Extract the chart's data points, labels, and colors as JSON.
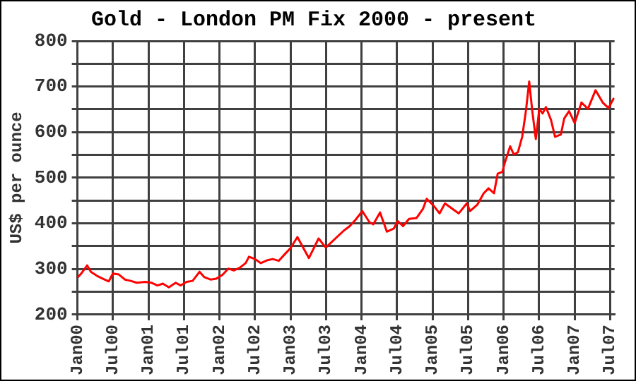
{
  "chart_data": {
    "type": "line",
    "title": "Gold - London PM Fix 2000 - present",
    "ylabel": "US$ per ounce",
    "x": [
      "2000-01-03",
      "2000-01-20",
      "2000-02-20",
      "2000-03-10",
      "2000-04-15",
      "2000-05-15",
      "2000-06-10",
      "2000-07-01",
      "2000-08-01",
      "2000-09-01",
      "2000-10-01",
      "2000-11-01",
      "2000-12-15",
      "2001-01-15",
      "2001-02-15",
      "2001-03-15",
      "2001-04-15",
      "2001-05-20",
      "2001-06-15",
      "2001-07-15",
      "2001-08-15",
      "2001-09-20",
      "2001-10-15",
      "2001-11-15",
      "2001-12-15",
      "2002-01-15",
      "2002-02-15",
      "2002-03-15",
      "2002-04-15",
      "2002-05-15",
      "2002-06-01",
      "2002-07-01",
      "2002-08-01",
      "2002-09-01",
      "2002-10-01",
      "2002-11-01",
      "2002-12-01",
      "2003-01-01",
      "2003-02-05",
      "2003-04-05",
      "2003-05-25",
      "2003-07-01",
      "2003-10-01",
      "2003-11-01",
      "2003-12-01",
      "2004-01-05",
      "2004-02-10",
      "2004-03-01",
      "2004-04-05",
      "2004-05-10",
      "2004-06-15",
      "2004-07-05",
      "2004-08-01",
      "2004-09-01",
      "2004-10-10",
      "2004-11-12",
      "2004-12-01",
      "2005-01-05",
      "2005-02-05",
      "2005-03-05",
      "2005-04-12",
      "2005-05-15",
      "2005-06-25",
      "2005-07-12",
      "2005-08-18",
      "2005-09-20",
      "2005-10-15",
      "2005-11-12",
      "2005-12-01",
      "2005-12-25",
      "2006-01-06",
      "2006-02-03",
      "2006-02-22",
      "2006-03-15",
      "2006-04-06",
      "2006-04-25",
      "2006-05-12",
      "2006-05-28",
      "2006-06-15",
      "2006-07-03",
      "2006-07-20",
      "2006-08-06",
      "2006-09-01",
      "2006-09-22",
      "2006-10-22",
      "2006-11-08",
      "2006-12-03",
      "2007-01-01",
      "2007-02-05",
      "2007-03-10",
      "2007-04-18",
      "2007-05-25",
      "2007-06-24",
      "2007-07-22"
    ],
    "series": [
      {
        "color": "#ff0000",
        "values": [
          282,
          290,
          308,
          294,
          284,
          278,
          273,
          290,
          288,
          277,
          274,
          270,
          272,
          270,
          264,
          268,
          260,
          270,
          264,
          272,
          274,
          294,
          282,
          277,
          279,
          287,
          301,
          297,
          303,
          313,
          327,
          322,
          313,
          319,
          322,
          318,
          332,
          346,
          370,
          324,
          367,
          347,
          384,
          394,
          408,
          427,
          403,
          398,
          424,
          382,
          389,
          405,
          394,
          410,
          412,
          432,
          454,
          439,
          422,
          444,
          432,
          422,
          444,
          427,
          441,
          466,
          477,
          466,
          509,
          513,
          532,
          569,
          551,
          556,
          590,
          646,
          711,
          646,
          585,
          651,
          641,
          655,
          627,
          590,
          595,
          630,
          646,
          620,
          665,
          651,
          692,
          665,
          653,
          675
        ]
      }
    ],
    "xlim": [
      "2000-01-01",
      "2007-07-25"
    ],
    "xticks": [
      {
        "value": "2000-01-01",
        "label": "Jan00"
      },
      {
        "value": "2000-07-01",
        "label": "Jul00"
      },
      {
        "value": "2001-01-01",
        "label": "Jan01"
      },
      {
        "value": "2001-07-01",
        "label": "Jul01"
      },
      {
        "value": "2002-01-01",
        "label": "Jan02"
      },
      {
        "value": "2002-07-01",
        "label": "Jul02"
      },
      {
        "value": "2003-01-01",
        "label": "Jan03"
      },
      {
        "value": "2003-07-01",
        "label": "Jul03"
      },
      {
        "value": "2004-01-01",
        "label": "Jan04"
      },
      {
        "value": "2004-07-01",
        "label": "Jul04"
      },
      {
        "value": "2005-01-01",
        "label": "Jan05"
      },
      {
        "value": "2005-07-01",
        "label": "Jul05"
      },
      {
        "value": "2006-01-01",
        "label": "Jan06"
      },
      {
        "value": "2006-07-01",
        "label": "Jul06"
      },
      {
        "value": "2007-01-01",
        "label": "Jan07"
      },
      {
        "value": "2007-07-01",
        "label": "Jul07"
      }
    ],
    "ylim": [
      200,
      800
    ],
    "yticks": [
      200,
      {
        "value": 250,
        "label": null
      },
      300,
      {
        "value": 350,
        "label": null
      },
      400,
      {
        "value": 450,
        "label": null
      },
      500,
      {
        "value": 550,
        "label": null
      },
      600,
      {
        "value": 650,
        "label": null
      },
      700,
      {
        "value": 750,
        "label": null
      },
      800
    ],
    "grid": true,
    "legend": false,
    "marker": "none",
    "line_style": "solid"
  }
}
